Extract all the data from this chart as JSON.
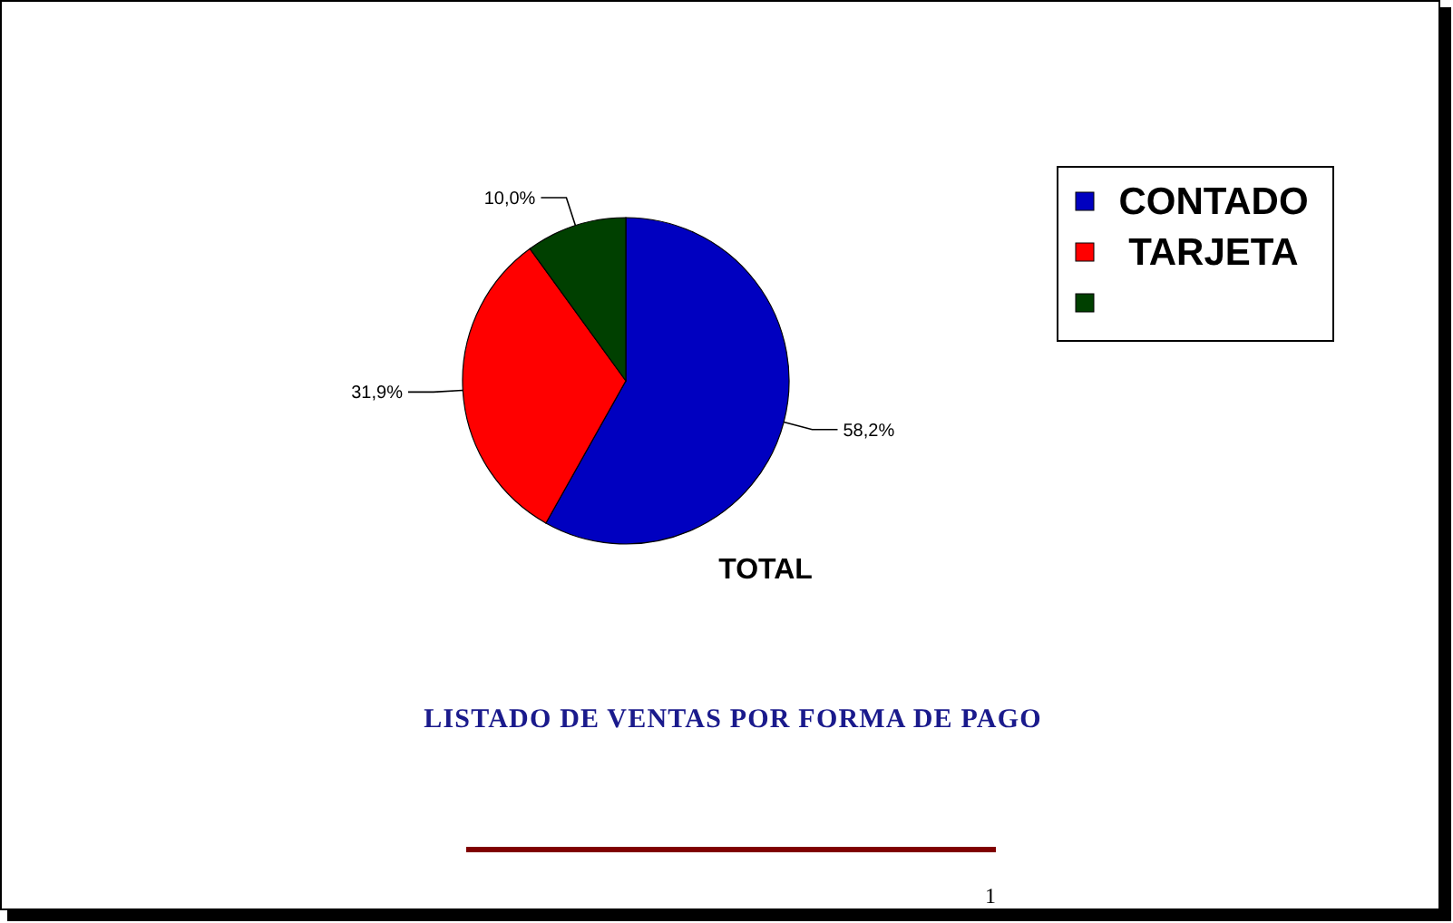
{
  "chart_data": {
    "type": "pie",
    "title": "LISTADO DE VENTAS POR FORMA DE PAGO",
    "subtitle": "TOTAL",
    "categories": [
      "CONTADO",
      "TARJETA",
      null
    ],
    "values": [
      58.2,
      31.9,
      10.0
    ],
    "value_labels": [
      "58,2%",
      "31,9%",
      "10,0%"
    ],
    "colors": [
      "#0000c0",
      "#ff0000",
      "#004000"
    ],
    "legend": "top right",
    "annotations": [
      "1"
    ]
  }
}
